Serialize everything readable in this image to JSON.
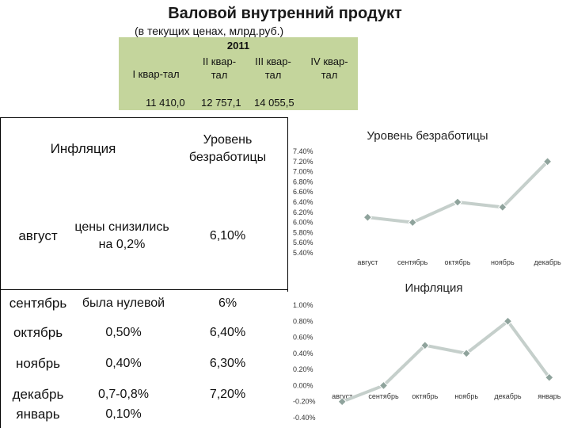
{
  "title": "Валовой внутренний продукт",
  "gdp": {
    "subtitle": "(в текущих ценах, млрд.руб.)",
    "year": "2011",
    "quarters": [
      "I квар-тал",
      "II квар-тал",
      "III квар-тал",
      "IV квар-тал"
    ],
    "values": [
      "11 410,0",
      "12 757,1",
      "14 055,5",
      ""
    ]
  },
  "table": {
    "header_inflation": "Инфляция",
    "header_unemployment": "Уровень безработицы",
    "rows": [
      {
        "month": "август",
        "inflation": "цены снизились на 0,2%",
        "unemployment": "6,10%"
      },
      {
        "month": "сентябрь",
        "inflation": "была нулевой",
        "unemployment": "6%"
      },
      {
        "month": "октябрь",
        "inflation": "0,50%",
        "unemployment": "6,40%"
      },
      {
        "month": "ноябрь",
        "inflation": "0,40%",
        "unemployment": "6,30%"
      },
      {
        "month": "декабрь",
        "inflation": "0,7-0,8%",
        "unemployment": "7,20%"
      },
      {
        "month": "январь",
        "inflation": "0,10%",
        "unemployment": ""
      }
    ]
  },
  "colors": {
    "gdp_table_bg": "#c4d59c",
    "line": "#c5cfcb",
    "point": "#8fa39c"
  },
  "chart_data": [
    {
      "type": "line",
      "title": "Уровень безработицы",
      "categories": [
        "август",
        "сентябрь",
        "октябрь",
        "ноябрь",
        "декабрь"
      ],
      "values": [
        6.1,
        6.0,
        6.4,
        6.3,
        7.2
      ],
      "ylim": [
        5.4,
        7.4
      ],
      "yticks": [
        "7.40%",
        "7.20%",
        "7.00%",
        "6.80%",
        "6.60%",
        "6.40%",
        "6.20%",
        "6.00%",
        "5.80%",
        "5.60%",
        "5.40%"
      ],
      "grid": false
    },
    {
      "type": "line",
      "title": "Инфляция",
      "categories": [
        "август",
        "сентябрь",
        "октябрь",
        "ноябрь",
        "декабрь",
        "январь"
      ],
      "values": [
        -0.2,
        0.0,
        0.5,
        0.4,
        0.8,
        0.1
      ],
      "ylim": [
        -0.4,
        1.0
      ],
      "yticks": [
        "1.00%",
        "0.80%",
        "0.60%",
        "0.40%",
        "0.20%",
        "0.00%",
        "-0.20%",
        "-0.40%"
      ],
      "grid": false
    }
  ]
}
